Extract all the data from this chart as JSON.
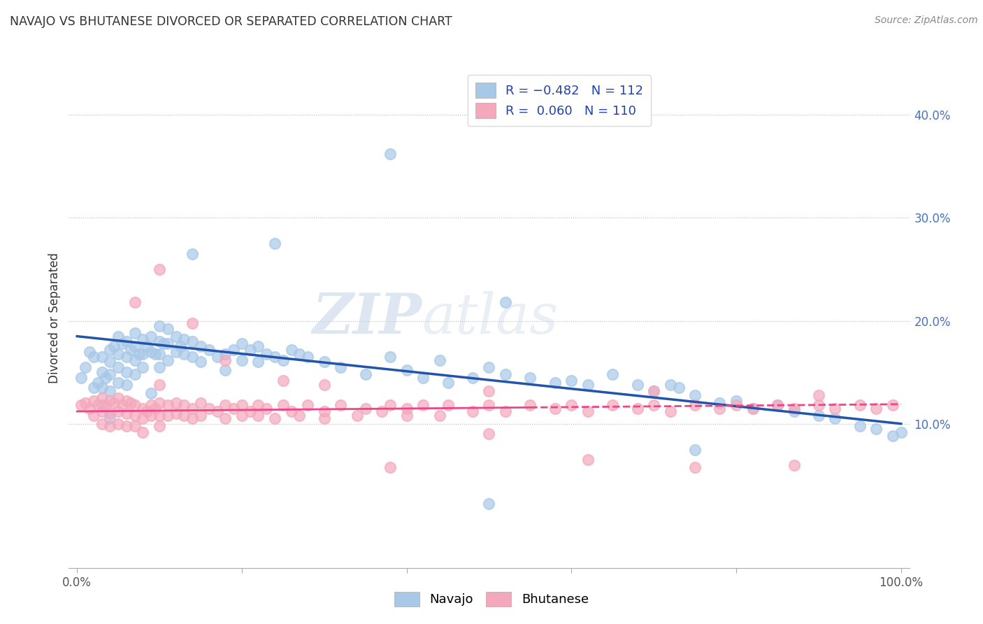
{
  "title": "NAVAJO VS BHUTANESE DIVORCED OR SEPARATED CORRELATION CHART",
  "source": "Source: ZipAtlas.com",
  "ylabel": "Divorced or Separated",
  "ytick_labels": [
    "10.0%",
    "20.0%",
    "30.0%",
    "40.0%"
  ],
  "ytick_values": [
    0.1,
    0.2,
    0.3,
    0.4
  ],
  "xlim": [
    -0.01,
    1.01
  ],
  "ylim": [
    -0.04,
    0.445
  ],
  "navajo_color": "#A8C8E8",
  "bhutanese_color": "#F4A8BC",
  "navajo_line_color": "#2255AA",
  "bhutanese_line_color": "#EE4488",
  "watermark_zip": "ZIP",
  "watermark_atlas": "atlas",
  "navajo_intercept": 0.185,
  "navajo_slope": -0.085,
  "bhutanese_intercept": 0.112,
  "bhutanese_slope": 0.007,
  "navajo_x": [
    0.005,
    0.01,
    0.015,
    0.02,
    0.02,
    0.025,
    0.03,
    0.03,
    0.03,
    0.03,
    0.035,
    0.04,
    0.04,
    0.04,
    0.04,
    0.04,
    0.045,
    0.05,
    0.05,
    0.05,
    0.05,
    0.055,
    0.06,
    0.06,
    0.06,
    0.06,
    0.065,
    0.07,
    0.07,
    0.07,
    0.07,
    0.075,
    0.08,
    0.08,
    0.08,
    0.085,
    0.09,
    0.09,
    0.09,
    0.095,
    0.1,
    0.1,
    0.1,
    0.1,
    0.105,
    0.11,
    0.11,
    0.11,
    0.12,
    0.12,
    0.125,
    0.13,
    0.13,
    0.14,
    0.14,
    0.15,
    0.15,
    0.16,
    0.17,
    0.18,
    0.18,
    0.19,
    0.2,
    0.2,
    0.21,
    0.22,
    0.22,
    0.23,
    0.24,
    0.25,
    0.26,
    0.27,
    0.28,
    0.3,
    0.32,
    0.35,
    0.38,
    0.4,
    0.42,
    0.44,
    0.45,
    0.48,
    0.5,
    0.52,
    0.55,
    0.58,
    0.6,
    0.62,
    0.65,
    0.68,
    0.7,
    0.72,
    0.73,
    0.75,
    0.78,
    0.8,
    0.82,
    0.85,
    0.87,
    0.9,
    0.92,
    0.95,
    0.97,
    0.99,
    1.0,
    0.14,
    0.24,
    0.38,
    0.52,
    0.75,
    0.5
  ],
  "navajo_y": [
    0.145,
    0.155,
    0.17,
    0.165,
    0.135,
    0.14,
    0.165,
    0.15,
    0.135,
    0.118,
    0.145,
    0.172,
    0.16,
    0.148,
    0.132,
    0.105,
    0.175,
    0.185,
    0.168,
    0.155,
    0.14,
    0.178,
    0.18,
    0.165,
    0.15,
    0.138,
    0.172,
    0.188,
    0.175,
    0.162,
    0.148,
    0.168,
    0.182,
    0.168,
    0.155,
    0.175,
    0.185,
    0.17,
    0.13,
    0.168,
    0.195,
    0.18,
    0.168,
    0.155,
    0.178,
    0.192,
    0.178,
    0.162,
    0.185,
    0.17,
    0.175,
    0.182,
    0.168,
    0.18,
    0.165,
    0.175,
    0.16,
    0.172,
    0.165,
    0.168,
    0.152,
    0.172,
    0.178,
    0.162,
    0.172,
    0.175,
    0.16,
    0.168,
    0.165,
    0.162,
    0.172,
    0.168,
    0.165,
    0.16,
    0.155,
    0.148,
    0.165,
    0.152,
    0.145,
    0.162,
    0.14,
    0.145,
    0.155,
    0.148,
    0.145,
    0.14,
    0.142,
    0.138,
    0.148,
    0.138,
    0.132,
    0.138,
    0.135,
    0.128,
    0.12,
    0.122,
    0.115,
    0.118,
    0.112,
    0.108,
    0.105,
    0.098,
    0.095,
    0.088,
    0.092,
    0.265,
    0.275,
    0.362,
    0.218,
    0.075,
    0.022
  ],
  "bhutanese_x": [
    0.005,
    0.01,
    0.015,
    0.02,
    0.02,
    0.025,
    0.03,
    0.03,
    0.03,
    0.035,
    0.04,
    0.04,
    0.04,
    0.045,
    0.05,
    0.05,
    0.05,
    0.055,
    0.06,
    0.06,
    0.06,
    0.065,
    0.07,
    0.07,
    0.07,
    0.08,
    0.08,
    0.08,
    0.085,
    0.09,
    0.09,
    0.095,
    0.1,
    0.1,
    0.1,
    0.11,
    0.11,
    0.12,
    0.12,
    0.13,
    0.13,
    0.14,
    0.14,
    0.15,
    0.15,
    0.16,
    0.17,
    0.18,
    0.18,
    0.19,
    0.2,
    0.2,
    0.21,
    0.22,
    0.22,
    0.23,
    0.24,
    0.25,
    0.26,
    0.27,
    0.28,
    0.3,
    0.3,
    0.32,
    0.34,
    0.35,
    0.37,
    0.38,
    0.4,
    0.4,
    0.42,
    0.44,
    0.45,
    0.48,
    0.5,
    0.52,
    0.55,
    0.58,
    0.6,
    0.62,
    0.65,
    0.68,
    0.7,
    0.72,
    0.75,
    0.78,
    0.8,
    0.82,
    0.85,
    0.87,
    0.9,
    0.92,
    0.95,
    0.97,
    0.99,
    0.07,
    0.1,
    0.18,
    0.25,
    0.38,
    0.5,
    0.62,
    0.75,
    0.87,
    0.1,
    0.3,
    0.5,
    0.7,
    0.9,
    0.14
  ],
  "bhutanese_y": [
    0.118,
    0.12,
    0.115,
    0.122,
    0.108,
    0.118,
    0.125,
    0.112,
    0.1,
    0.118,
    0.122,
    0.11,
    0.098,
    0.12,
    0.125,
    0.112,
    0.1,
    0.118,
    0.122,
    0.11,
    0.098,
    0.12,
    0.118,
    0.108,
    0.098,
    0.115,
    0.105,
    0.092,
    0.112,
    0.118,
    0.108,
    0.115,
    0.12,
    0.108,
    0.098,
    0.118,
    0.108,
    0.12,
    0.11,
    0.118,
    0.108,
    0.115,
    0.105,
    0.12,
    0.108,
    0.115,
    0.112,
    0.118,
    0.105,
    0.115,
    0.118,
    0.108,
    0.112,
    0.118,
    0.108,
    0.115,
    0.105,
    0.118,
    0.112,
    0.108,
    0.118,
    0.112,
    0.105,
    0.118,
    0.108,
    0.115,
    0.112,
    0.118,
    0.115,
    0.108,
    0.118,
    0.108,
    0.118,
    0.112,
    0.118,
    0.112,
    0.118,
    0.115,
    0.118,
    0.112,
    0.118,
    0.115,
    0.118,
    0.112,
    0.118,
    0.115,
    0.118,
    0.115,
    0.118,
    0.115,
    0.118,
    0.115,
    0.118,
    0.115,
    0.118,
    0.218,
    0.25,
    0.162,
    0.142,
    0.058,
    0.09,
    0.065,
    0.058,
    0.06,
    0.138,
    0.138,
    0.132,
    0.132,
    0.128,
    0.198
  ]
}
